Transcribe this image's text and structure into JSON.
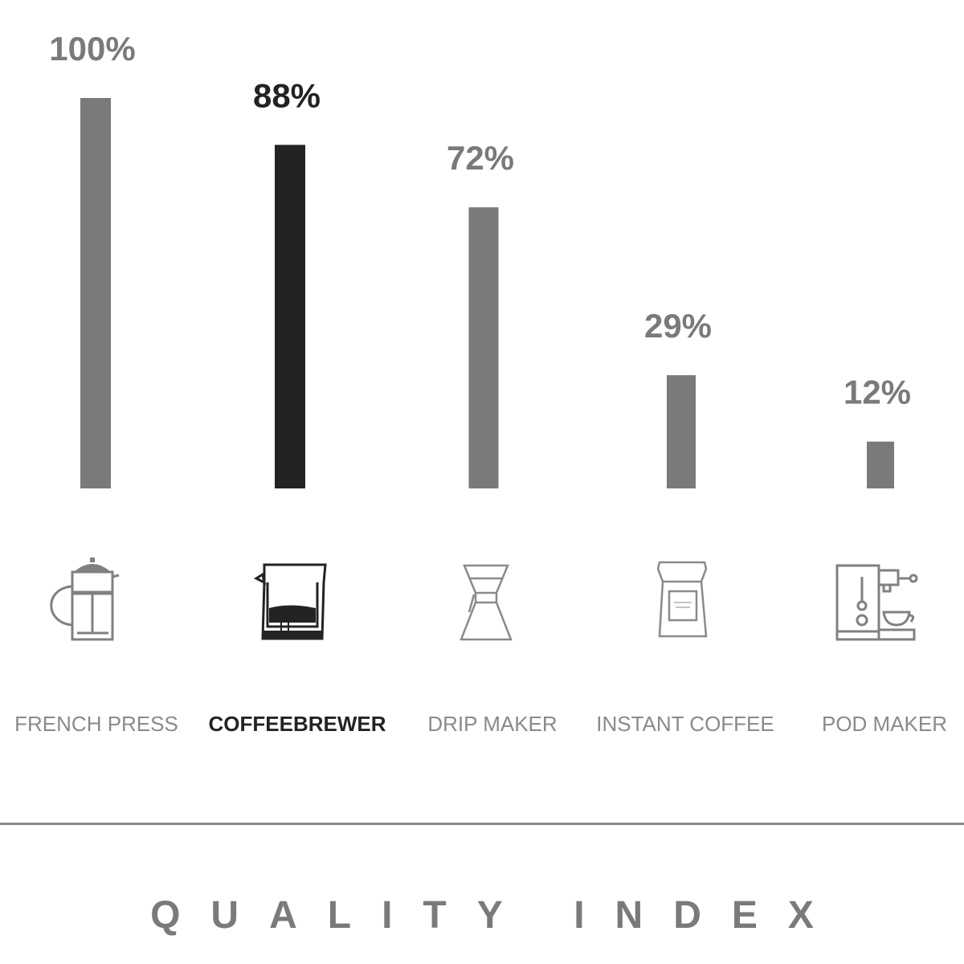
{
  "chart_data": {
    "type": "bar",
    "title": "QUALITY INDEX",
    "categories": [
      "FRENCH PRESS",
      "COFFEEBREWER",
      "DRIP MAKER",
      "INSTANT COFFEE",
      "POD MAKER"
    ],
    "values": [
      100,
      88,
      72,
      29,
      12
    ],
    "value_labels": [
      "100%",
      "88%",
      "72%",
      "29%",
      "12%"
    ],
    "highlight_index": 1,
    "ylim": [
      0,
      100
    ],
    "grid": false,
    "legend": "none",
    "colors": {
      "default": "#7a7a7a",
      "highlight": "#232323"
    },
    "icons": [
      "french-press-icon",
      "coffeebrewer-icon",
      "drip-maker-icon",
      "instant-coffee-icon",
      "pod-maker-icon"
    ]
  }
}
